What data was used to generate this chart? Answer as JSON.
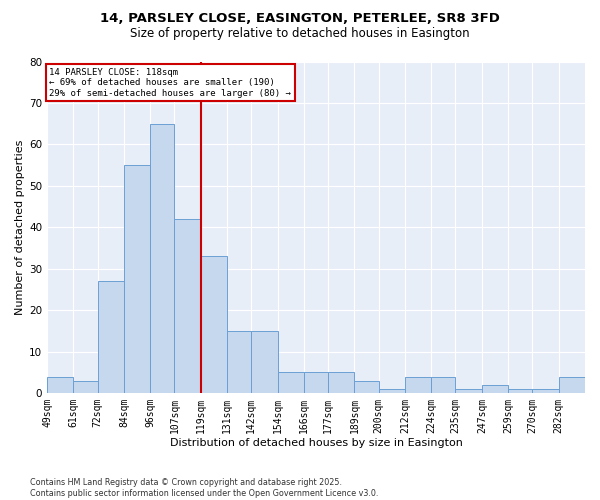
{
  "title_line1": "14, PARSLEY CLOSE, EASINGTON, PETERLEE, SR8 3FD",
  "title_line2": "Size of property relative to detached houses in Easington",
  "xlabel": "Distribution of detached houses by size in Easington",
  "ylabel": "Number of detached properties",
  "bar_color": "#c5d8ee",
  "bar_edge_color": "#6b9fd4",
  "bg_color": "#e8eef8",
  "grid_color": "#ffffff",
  "annotation_line1": "14 PARSLEY CLOSE: 118sqm",
  "annotation_line2": "← 69% of detached houses are smaller (190)",
  "annotation_line3": "29% of semi-detached houses are larger (80) →",
  "annotation_box_edge": "#cc0000",
  "vline_color": "#cc0000",
  "vline_x": 119,
  "categories": [
    49,
    61,
    72,
    84,
    96,
    107,
    119,
    131,
    142,
    154,
    166,
    177,
    189,
    200,
    212,
    224,
    235,
    247,
    259,
    270,
    282
  ],
  "values": [
    4,
    3,
    27,
    55,
    65,
    42,
    33,
    15,
    15,
    5,
    5,
    5,
    3,
    1,
    4,
    4,
    1,
    2,
    1,
    1,
    4
  ],
  "ylim_max": 80,
  "yticks": [
    0,
    10,
    20,
    30,
    40,
    50,
    60,
    70,
    80
  ],
  "footer_text": "Contains HM Land Registry data © Crown copyright and database right 2025.\nContains public sector information licensed under the Open Government Licence v3.0.",
  "figsize": [
    6.0,
    5.0
  ],
  "dpi": 100
}
